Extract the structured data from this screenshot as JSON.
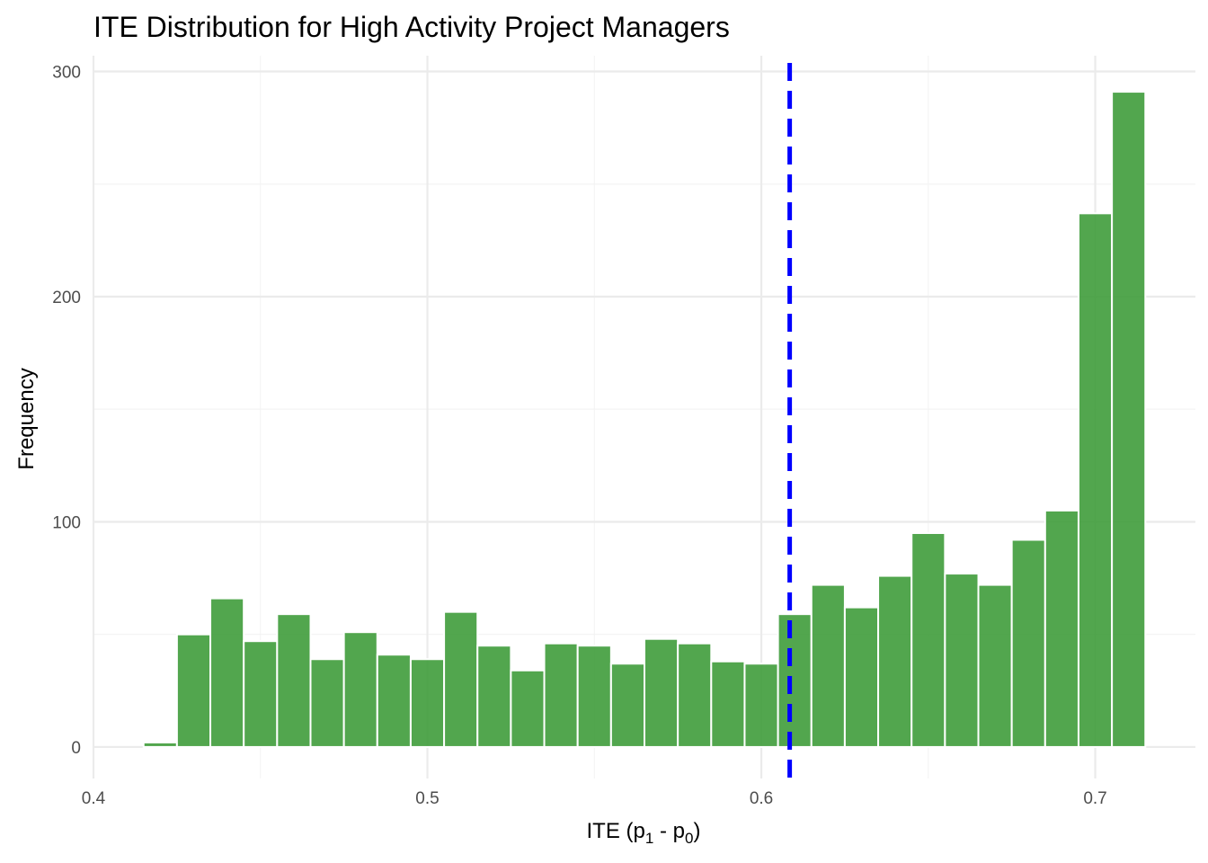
{
  "chart_data": {
    "type": "bar",
    "title": "ITE Distribution for High Activity Project Managers",
    "xlabel": {
      "main": "ITE (p",
      "sub1": "1",
      "middle": " - p",
      "sub2": "0",
      "end": ")"
    },
    "ylabel": "Frequency",
    "xlim": [
      0.4,
      0.73
    ],
    "ylim": [
      -14,
      307
    ],
    "x_ticks": [
      "0.4",
      "0.5",
      "0.6",
      "0.7"
    ],
    "y_ticks": [
      "0",
      "100",
      "200",
      "300"
    ],
    "bin_start": 0.415,
    "bin_width": 0.01,
    "counts": [
      2,
      50,
      66,
      47,
      59,
      39,
      51,
      41,
      39,
      60,
      45,
      34,
      46,
      45,
      37,
      48,
      46,
      38,
      37,
      59,
      72,
      62,
      76,
      95,
      77,
      72,
      92,
      105,
      237,
      291
    ],
    "mean_line_x": 0.6085,
    "colors": {
      "bar": "#3a9a36",
      "mean_line": "#0000ff"
    }
  }
}
